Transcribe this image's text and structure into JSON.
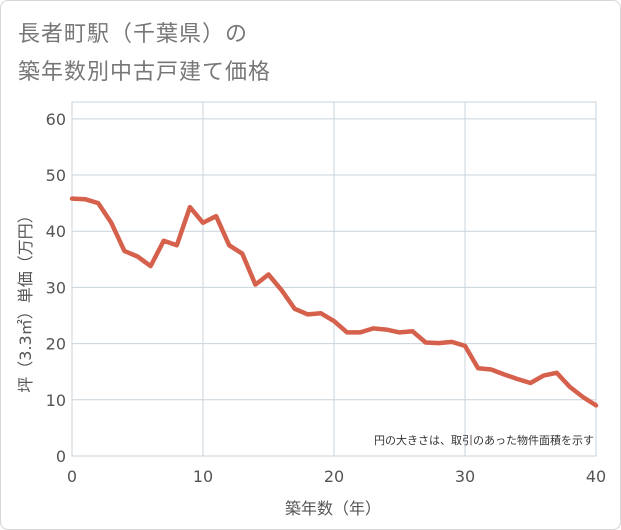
{
  "chart_data": {
    "type": "scatter",
    "title_line1": "長者町駅（千葉県）の",
    "title_line2": "築年数別中古戸建て価格",
    "xlabel": "築年数（年）",
    "ylabel": "坪（3.3㎡）単価（万円）",
    "xlim": [
      0,
      40
    ],
    "ylim": [
      0,
      63
    ],
    "xticks": [
      0,
      10,
      20,
      30,
      40
    ],
    "yticks": [
      0,
      10,
      20,
      30,
      40,
      50,
      60
    ],
    "grid": true,
    "annotation": "円の大きさは、取引のあった物件面積を示す",
    "colors": {
      "bubble": "#f0b14f",
      "line": "#d5604c",
      "grid": "#c9d3dc",
      "frame": "#c9d3dc"
    },
    "trend_line": {
      "x": [
        0,
        1,
        2,
        3,
        4,
        5,
        6,
        7,
        8,
        9,
        10,
        11,
        12,
        13,
        14,
        15,
        16,
        17,
        18,
        19,
        20,
        21,
        22,
        23,
        24,
        25,
        26,
        27,
        28,
        29,
        30,
        31,
        32,
        33,
        34,
        35,
        36,
        37,
        38,
        39,
        40
      ],
      "y": [
        45.8,
        45.7,
        45,
        41.5,
        36.5,
        35.5,
        33.8,
        38.3,
        37.5,
        44.3,
        41.5,
        42.7,
        37.5,
        36,
        30.5,
        32.3,
        29.5,
        26.2,
        25.2,
        25.4,
        24,
        22,
        22,
        22.7,
        22.5,
        22,
        22.2,
        20.2,
        20.1,
        20.3,
        19.6,
        15.6,
        15.4,
        14.5,
        13.7,
        13,
        14.3,
        14.8,
        12.3,
        10.5,
        9
      ]
    }
  }
}
